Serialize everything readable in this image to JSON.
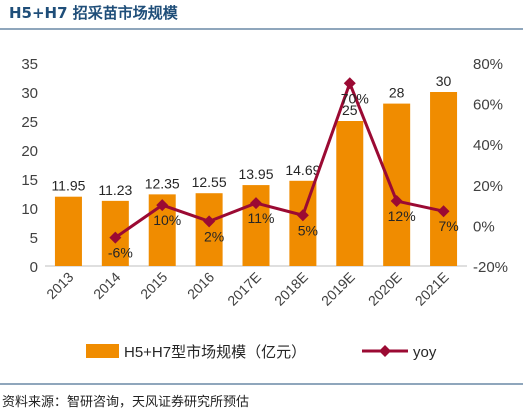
{
  "header": {
    "title": "H5+H7 招采苗市场规模"
  },
  "footer": {
    "source": "资料来源：智研咨询，天风证券研究所预估"
  },
  "colors": {
    "bar": "#f08c00",
    "line": "#9b0a33",
    "title": "#1f4e79"
  },
  "chart_data": {
    "type": "bar",
    "categories": [
      "2013",
      "2014",
      "2015",
      "2016",
      "2017E",
      "2018E",
      "2019E",
      "2020E",
      "2021E"
    ],
    "series": [
      {
        "name": "H5+H7型市场规模（亿元）",
        "type": "bar",
        "axis": "left",
        "values": [
          11.95,
          11.23,
          12.35,
          12.55,
          13.95,
          14.69,
          25,
          28,
          30
        ],
        "labels": [
          "11.95",
          "11.23",
          "12.35",
          "12.55",
          "13.95",
          "14.69",
          "25",
          "28",
          "30"
        ]
      },
      {
        "name": "yoy",
        "type": "line",
        "axis": "right",
        "values": [
          null,
          -6,
          10,
          2,
          11,
          5,
          70,
          12,
          7
        ],
        "labels": [
          "",
          "-6%",
          "10%",
          "2%",
          "11%",
          "5%",
          "70%",
          "12%",
          "7%"
        ]
      }
    ],
    "y_left": {
      "ylim": [
        0,
        35
      ],
      "ticks": [
        "0",
        "5",
        "10",
        "15",
        "20",
        "25",
        "30",
        "35"
      ]
    },
    "y_right": {
      "ylim": [
        -20,
        80
      ],
      "ticks": [
        "-20%",
        "0%",
        "20%",
        "40%",
        "60%",
        "80%"
      ]
    },
    "grid": false,
    "legend": "bottom"
  }
}
